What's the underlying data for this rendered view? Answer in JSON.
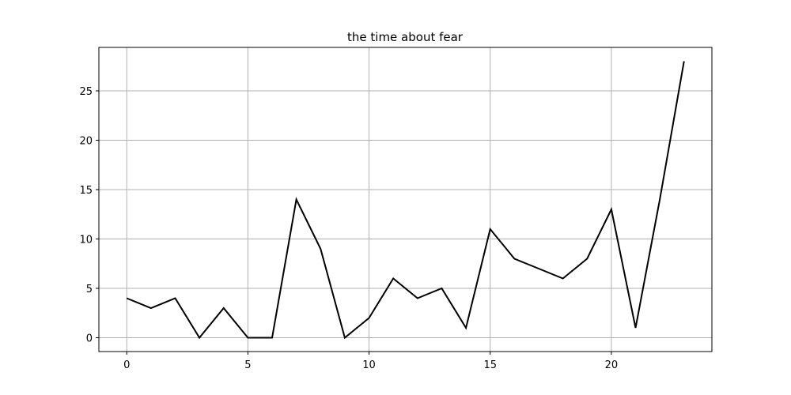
{
  "chart_data": {
    "type": "line",
    "title": "the time about fear",
    "xlabel": "",
    "ylabel": "",
    "x": [
      0,
      1,
      2,
      3,
      4,
      5,
      6,
      7,
      8,
      9,
      10,
      11,
      12,
      13,
      14,
      15,
      16,
      17,
      18,
      19,
      20,
      21,
      22,
      23
    ],
    "series": [
      {
        "values": [
          4,
          3,
          4,
          0,
          3,
          0,
          0,
          14,
          9,
          0,
          2,
          6,
          4,
          5,
          1,
          11,
          8,
          7,
          6,
          8,
          13,
          1,
          14,
          28
        ]
      }
    ],
    "xlim": [
      -1.15,
      24.15
    ],
    "ylim": [
      -1.4,
      29.4
    ],
    "xticks": [
      0,
      5,
      10,
      15,
      20
    ],
    "yticks": [
      0,
      5,
      10,
      15,
      20,
      25
    ],
    "grid": true,
    "line_color": "#000000",
    "grid_color": "#b0b0b0"
  }
}
